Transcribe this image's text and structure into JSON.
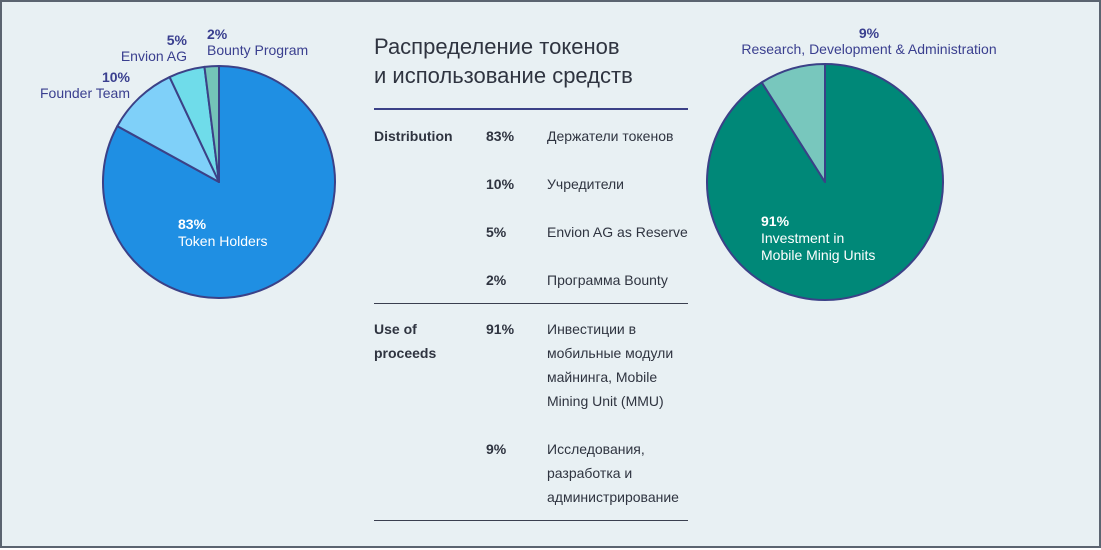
{
  "colors": {
    "token_holders": "#1f8fe3",
    "founder_team": "#7fd0f9",
    "envion_ag": "#6fdcea",
    "bounty": "#74c4b8",
    "rnd": "#78c7bd",
    "investment": "#008878",
    "stroke": "#3b4187",
    "label": "#3a3f8f"
  },
  "chart_data": [
    {
      "type": "pie",
      "slices": [
        {
          "label": "Token Holders",
          "value": 83
        },
        {
          "label": "Founder Team",
          "value": 10
        },
        {
          "label": "Envion AG",
          "value": 5
        },
        {
          "label": "Bounty Program",
          "value": 2
        }
      ],
      "labels": {
        "token_holders": {
          "pct": "83%",
          "name": "Token Holders"
        },
        "founder_team": {
          "pct": "10%",
          "name": "Founder Team"
        },
        "envion_ag": {
          "pct": "5%",
          "name": "Envion AG"
        },
        "bounty": {
          "pct": "2%",
          "name": "Bounty Program"
        }
      }
    },
    {
      "type": "pie",
      "slices": [
        {
          "label": "Investment in Mobile Minig Units",
          "value": 91
        },
        {
          "label": "Research, Development & Administration",
          "value": 9
        }
      ],
      "labels": {
        "investment": {
          "pct": "91%",
          "line1": "Investment in",
          "line2": "Mobile Minig Units"
        },
        "rnd": {
          "pct": "9%",
          "name": "Research, Development & Administration"
        }
      }
    }
  ],
  "title": {
    "line1": "Распределение токенов",
    "line2": "и использование средств"
  },
  "table": {
    "distribution": {
      "heading": "Distribution",
      "rows": [
        {
          "pct": "83%",
          "text": "Держатели токенов"
        },
        {
          "pct": "10%",
          "text": "Учредители"
        },
        {
          "pct": "5%",
          "text": "Envion AG as Reserve"
        },
        {
          "pct": "2%",
          "text": "Программа Bounty"
        }
      ]
    },
    "proceeds": {
      "heading_line1": "Use of",
      "heading_line2": "proceeds",
      "rows": [
        {
          "pct": "91%",
          "lines": [
            "Инвестиции в",
            "мобильные модули",
            "майнинга, Mobile",
            "Mining Unit (MMU)"
          ]
        },
        {
          "pct": "9%",
          "lines": [
            "Исследования,",
            "разработка и",
            "администрирование"
          ]
        }
      ]
    }
  }
}
